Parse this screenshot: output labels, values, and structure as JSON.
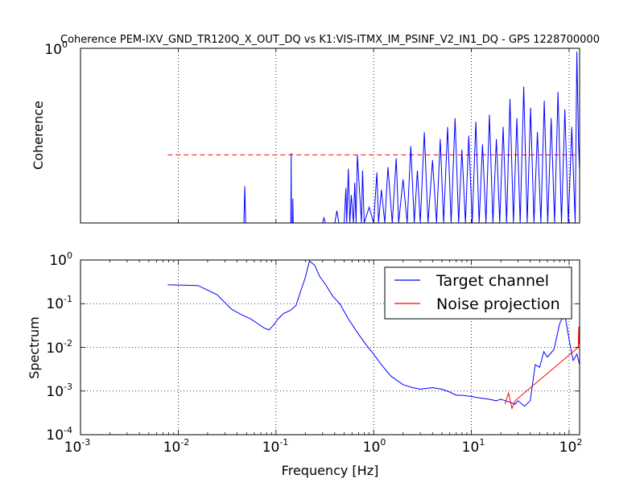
{
  "figure": {
    "title": "Coherence PEM-IXV_GND_TR120Q_X_OUT_DQ vs K1:VIS-ITMX_IM_PSINF_V2_IN1_DQ - GPS 1228700000"
  },
  "chart_data": [
    {
      "type": "line",
      "panel": "coherence",
      "title": "Coherence PEM-IXV_GND_TR120Q_X_OUT_DQ vs K1:VIS-ITMX_IM_PSINF_V2_IN1_DQ - GPS 1228700000",
      "xlabel": "",
      "ylabel": "Coherence",
      "xscale": "log",
      "yscale": "linear",
      "xlim": [
        0.001,
        128
      ],
      "ylim": [
        0,
        1
      ],
      "ytick_labels": [
        {
          "base": "10",
          "exp": "0"
        }
      ],
      "grid": true,
      "threshold": {
        "y": 0.39,
        "x": [
          0.0078,
          128
        ],
        "color": "#ff0000",
        "style": "dashed"
      },
      "series": [
        {
          "color": "#0000ff",
          "x": [
            0.0078,
            0.02,
            0.047,
            0.048,
            0.049,
            0.05,
            0.08,
            0.142,
            0.143,
            0.144,
            0.148,
            0.149,
            0.15,
            0.21,
            0.3,
            0.31,
            0.32,
            0.4,
            0.42,
            0.44,
            0.5,
            0.52,
            0.53,
            0.55,
            0.57,
            0.59,
            0.62,
            0.64,
            0.66,
            0.68,
            0.75,
            0.77,
            0.8,
            0.9,
            1.0,
            1.08,
            1.12,
            1.2,
            1.3,
            1.4,
            1.55,
            1.7,
            1.8,
            2.0,
            2.2,
            2.4,
            2.6,
            2.8,
            3.0,
            3.3,
            3.6,
            4.0,
            4.4,
            4.8,
            5.2,
            5.7,
            6.2,
            6.8,
            7.4,
            8.0,
            8.7,
            9.4,
            10.2,
            11.1,
            12.0,
            13.0,
            14.1,
            15.3,
            16.6,
            18.0,
            19.5,
            21.1,
            22.9,
            24.8,
            26.9,
            29.2,
            31.6,
            34.3,
            37.2,
            40.3,
            43.7,
            47.4,
            51.4,
            55.7,
            60.4,
            65.5,
            71.0,
            77.0,
            83.5,
            90.5,
            98.1,
            106.4,
            115.3,
            120.0,
            125.0,
            128.0
          ],
          "y": [
            0.0,
            0.0,
            0.0,
            0.21,
            0.0,
            0.0,
            0.0,
            0.0,
            0.4,
            0.0,
            0.0,
            0.14,
            0.0,
            0.0,
            0.0,
            0.03,
            0.0,
            0.0,
            0.07,
            0.0,
            0.0,
            0.2,
            0.0,
            0.31,
            0.0,
            0.16,
            0.0,
            0.23,
            0.0,
            0.39,
            0.0,
            0.3,
            0.0,
            0.09,
            0.0,
            0.29,
            0.0,
            0.19,
            0.0,
            0.32,
            0.0,
            0.37,
            0.0,
            0.25,
            0.0,
            0.44,
            0.0,
            0.3,
            0.0,
            0.52,
            0.0,
            0.36,
            0.0,
            0.48,
            0.0,
            0.55,
            0.0,
            0.6,
            0.0,
            0.42,
            0.0,
            0.5,
            0.0,
            0.58,
            0.0,
            0.45,
            0.0,
            0.62,
            0.0,
            0.48,
            0.0,
            0.55,
            0.0,
            0.71,
            0.0,
            0.6,
            0.0,
            0.78,
            0.0,
            0.66,
            0.0,
            0.52,
            0.0,
            0.7,
            0.0,
            0.6,
            0.0,
            0.75,
            0.0,
            0.65,
            0.0,
            0.55,
            0.0,
            0.98,
            0.45,
            0.3
          ]
        }
      ]
    },
    {
      "type": "line",
      "panel": "spectrum",
      "xlabel": "Frequency [Hz]",
      "ylabel": "Spectrum",
      "xscale": "log",
      "yscale": "log",
      "xlim": [
        0.001,
        128
      ],
      "ylim": [
        0.0001,
        1
      ],
      "xtick_labels": [
        {
          "base": "10",
          "exp": "-3"
        },
        {
          "base": "10",
          "exp": "-2"
        },
        {
          "base": "10",
          "exp": "-1"
        },
        {
          "base": "10",
          "exp": "0"
        },
        {
          "base": "10",
          "exp": "1"
        },
        {
          "base": "10",
          "exp": "2"
        }
      ],
      "ytick_labels": [
        {
          "base": "10",
          "exp": "-4"
        },
        {
          "base": "10",
          "exp": "-3"
        },
        {
          "base": "10",
          "exp": "-2"
        },
        {
          "base": "10",
          "exp": "-1"
        },
        {
          "base": "10",
          "exp": "0"
        }
      ],
      "grid": true,
      "legend": {
        "position": "top-right"
      },
      "series": [
        {
          "name": "Target channel",
          "color": "#0000ff",
          "x": [
            0.0078,
            0.016,
            0.025,
            0.035,
            0.045,
            0.055,
            0.065,
            0.075,
            0.085,
            0.095,
            0.105,
            0.12,
            0.14,
            0.16,
            0.18,
            0.2,
            0.22,
            0.25,
            0.28,
            0.32,
            0.38,
            0.45,
            0.55,
            0.7,
            0.85,
            1.0,
            1.2,
            1.5,
            2.0,
            2.5,
            3.0,
            4.0,
            5.0,
            6.0,
            7.0,
            8.0,
            10.0,
            12.0,
            15.0,
            18.0,
            20.0,
            25.0,
            28.0,
            30.0,
            35.0,
            40.0,
            45.0,
            50.0,
            55.0,
            60.0,
            70.0,
            80.0,
            90.0,
            100.0,
            110.0,
            120.0,
            128.0
          ],
          "y": [
            0.27,
            0.26,
            0.16,
            0.075,
            0.055,
            0.045,
            0.035,
            0.028,
            0.025,
            0.033,
            0.045,
            0.06,
            0.07,
            0.09,
            0.2,
            0.4,
            0.95,
            0.75,
            0.42,
            0.28,
            0.15,
            0.1,
            0.045,
            0.02,
            0.011,
            0.007,
            0.004,
            0.0022,
            0.0014,
            0.0012,
            0.0011,
            0.0012,
            0.0011,
            0.00095,
            0.0008,
            0.0008,
            0.00075,
            0.0007,
            0.00065,
            0.0006,
            0.00065,
            0.00055,
            0.0005,
            0.0006,
            0.00045,
            0.0006,
            0.004,
            0.0035,
            0.008,
            0.006,
            0.009,
            0.035,
            0.06,
            0.015,
            0.005,
            0.007,
            0.004
          ]
        },
        {
          "name": "Noise projection",
          "color": "#ff0000",
          "x": [
            22.0,
            24.0,
            26.0,
            28.0,
            124.0,
            125.5,
            127.0,
            128.0
          ],
          "y": [
            0.0005,
            0.0009,
            0.0004,
            0.0006,
            0.01,
            0.03,
            0.012,
            0.02
          ]
        }
      ]
    }
  ]
}
